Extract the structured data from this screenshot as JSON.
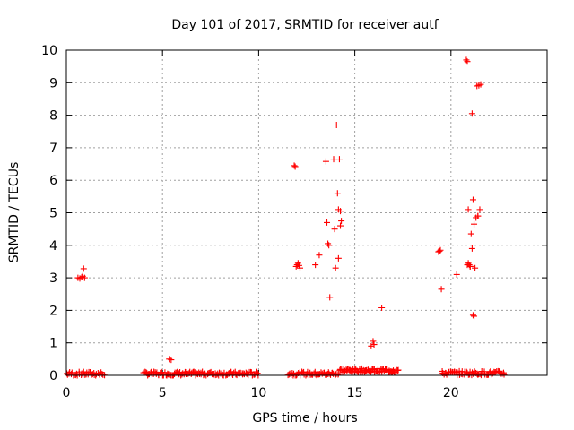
{
  "chart_data": {
    "type": "scatter",
    "title": "Day 101 of 2017, SRMTID for receiver autf",
    "xlabel": "GPS time / hours",
    "ylabel": "SRMTID / TECUs",
    "xlim": [
      0,
      25
    ],
    "ylim": [
      0,
      10
    ],
    "xticks": [
      0,
      5,
      10,
      15,
      20
    ],
    "yticks": [
      0,
      1,
      2,
      3,
      4,
      5,
      6,
      7,
      8,
      9,
      10
    ],
    "xtick_labels": [
      "0",
      "5",
      "10",
      "15",
      "20"
    ],
    "ytick_labels": [
      "0",
      "1",
      "2",
      "3",
      "4",
      "5",
      "6",
      "7",
      "8",
      "9",
      "10"
    ],
    "grid": true,
    "marker": "plus",
    "color": "#ff0000",
    "clusters": [
      {
        "x": [
          0.0,
          2.0
        ],
        "y_base": 0.05,
        "count": 36
      },
      {
        "x": [
          4.0,
          10.0
        ],
        "y_base": 0.05,
        "count": 120
      },
      {
        "x": [
          11.5,
          14.2
        ],
        "y_base": 0.05,
        "count": 50
      },
      {
        "x": [
          14.2,
          17.3
        ],
        "y_base": 0.15,
        "count": 70
      },
      {
        "x": [
          19.5,
          22.8
        ],
        "y_base": 0.07,
        "count": 60
      }
    ],
    "x": [
      0.6,
      0.7,
      0.8,
      0.85,
      0.9,
      0.95,
      5.35,
      5.45,
      11.85,
      11.9,
      11.95,
      12.0,
      12.05,
      12.1,
      12.15,
      12.95,
      13.15,
      13.5,
      13.55,
      13.6,
      13.65,
      13.7,
      13.9,
      13.95,
      14.0,
      14.05,
      14.1,
      14.15,
      14.2,
      14.25,
      14.3,
      14.25,
      14.15,
      15.85,
      15.95,
      16.0,
      16.4,
      19.35,
      19.4,
      19.45,
      19.5,
      20.3,
      20.8,
      20.85,
      20.95,
      21.0,
      20.9,
      21.05,
      21.1,
      21.15,
      21.2,
      21.3,
      21.4,
      21.5,
      21.55,
      21.1,
      21.15,
      21.2,
      21.25,
      21.35,
      21.4,
      21.45,
      20.85,
      20.9,
      21.0
    ],
    "y": [
      3.0,
      2.98,
      3.02,
      3.05,
      3.28,
      3.0,
      0.5,
      0.48,
      6.45,
      6.42,
      3.35,
      3.4,
      3.45,
      3.38,
      3.3,
      3.4,
      3.7,
      6.58,
      4.7,
      4.05,
      4.0,
      2.4,
      6.65,
      4.5,
      3.3,
      7.7,
      5.6,
      5.1,
      6.65,
      4.6,
      4.75,
      5.05,
      3.6,
      0.9,
      1.05,
      0.95,
      2.08,
      3.8,
      3.82,
      3.85,
      2.65,
      3.1,
      9.7,
      9.65,
      3.4,
      3.35,
      5.1,
      4.35,
      3.9,
      1.85,
      1.82,
      4.85,
      4.9,
      5.1,
      8.95,
      8.05,
      5.4,
      4.65,
      3.3,
      8.9,
      4.9,
      8.92,
      3.4,
      3.45,
      3.35
    ]
  }
}
